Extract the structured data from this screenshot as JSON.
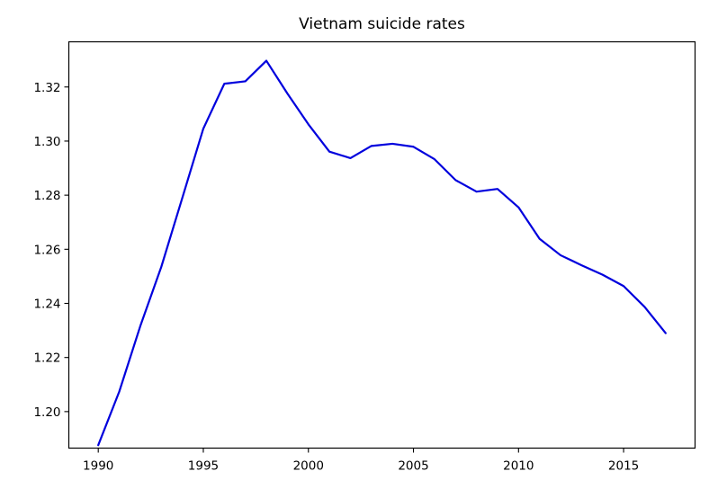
{
  "chart_data": {
    "type": "line",
    "title": "Vietnam suicide rates",
    "xlabel": "",
    "ylabel": "",
    "xlim": [
      1988.6,
      2018.4
    ],
    "ylim": [
      1.1865,
      1.3367
    ],
    "x_ticks": [
      {
        "value": 1990,
        "label": "1990"
      },
      {
        "value": 1995,
        "label": "1995"
      },
      {
        "value": 2000,
        "label": "2000"
      },
      {
        "value": 2005,
        "label": "2005"
      },
      {
        "value": 2010,
        "label": "2010"
      },
      {
        "value": 2015,
        "label": "2015"
      }
    ],
    "y_ticks": [
      {
        "value": 1.2,
        "label": "1.20"
      },
      {
        "value": 1.22,
        "label": "1.22"
      },
      {
        "value": 1.24,
        "label": "1.24"
      },
      {
        "value": 1.26,
        "label": "1.26"
      },
      {
        "value": 1.28,
        "label": "1.28"
      },
      {
        "value": 1.3,
        "label": "1.30"
      },
      {
        "value": 1.32,
        "label": "1.32"
      }
    ],
    "grid": false,
    "series": [
      {
        "color": "#0000dd",
        "x": [
          1990,
          1991,
          1992,
          1993,
          1994,
          1995,
          1996,
          1997,
          1998,
          1999,
          2000,
          2001,
          2002,
          2003,
          2004,
          2005,
          2006,
          2007,
          2008,
          2009,
          2010,
          2011,
          2012,
          2013,
          2014,
          2015,
          2016,
          2017
        ],
        "y": [
          1.1876,
          1.2074,
          1.2316,
          1.2535,
          1.279,
          1.3046,
          1.3212,
          1.3221,
          1.3297,
          1.3176,
          1.3062,
          1.2961,
          1.2937,
          1.2982,
          1.299,
          1.2979,
          1.2933,
          1.2856,
          1.2813,
          1.2823,
          1.2755,
          1.2639,
          1.2578,
          1.2541,
          1.2506,
          1.2464,
          1.2387,
          1.229
        ]
      }
    ]
  }
}
